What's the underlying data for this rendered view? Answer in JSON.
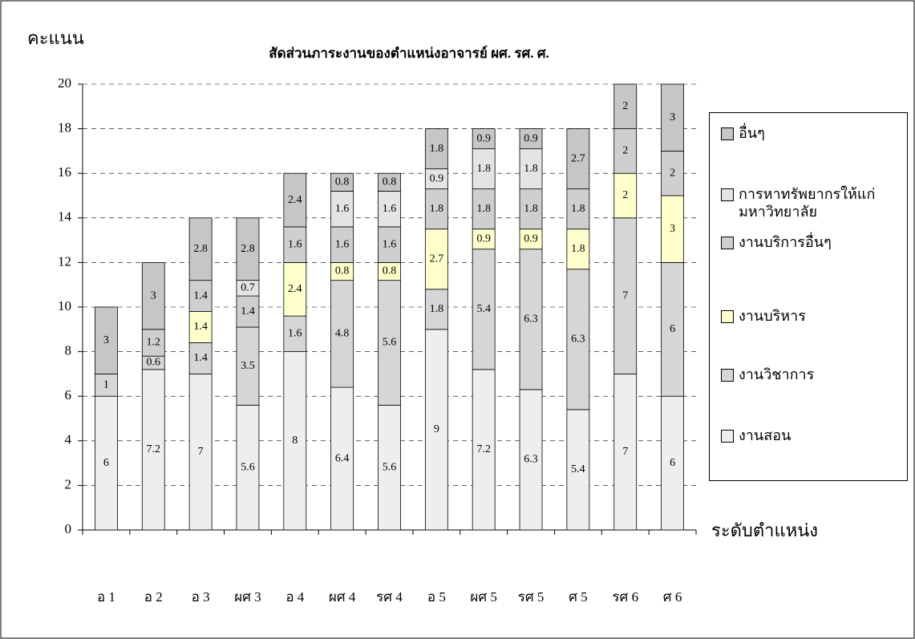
{
  "chart_data": {
    "type": "stacked_bar",
    "title": "สัดส่วนภาระงานของตำแหน่งอาจารย์ ผศ. รศ. ศ.",
    "y_label": "คะแนน",
    "x_label": "ระดับตำแหน่ง",
    "categories": [
      "อ 1",
      "อ 2",
      "อ 3",
      "ผศ 3",
      "อ 4",
      "ผศ 4",
      "รศ 4",
      "อ 5",
      "ผศ 5",
      "รศ 5",
      "ศ 5",
      "รศ 6",
      "ศ 6"
    ],
    "series": [
      {
        "name": "งานสอน",
        "color": "#eeeeee",
        "values": [
          6,
          7.2,
          7,
          5.6,
          8,
          6.4,
          5.6,
          9,
          7.2,
          6.3,
          5.4,
          7,
          6
        ]
      },
      {
        "name": "งานวิชาการ",
        "color": "#d6d6d6",
        "values": [
          1,
          0.6,
          1.4,
          3.5,
          1.6,
          4.8,
          5.6,
          1.8,
          5.4,
          6.3,
          6.3,
          7,
          6
        ]
      },
      {
        "name": "งานบริหาร",
        "color": "#ffffcc",
        "values": [
          null,
          null,
          1.4,
          null,
          2.4,
          0.8,
          0.8,
          2.7,
          0.9,
          0.9,
          1.8,
          2,
          3
        ]
      },
      {
        "name": "งานบริการอื่นๆ",
        "color": "#cfcfcf",
        "values": [
          null,
          1.2,
          1.4,
          1.4,
          1.6,
          1.6,
          1.6,
          1.8,
          1.8,
          1.8,
          1.8,
          2,
          2
        ]
      },
      {
        "name": "การหาทรัพยากรให้แก่มหาวิทยาลัย",
        "color": "#e4e4e4",
        "values": [
          null,
          null,
          null,
          0.7,
          null,
          1.6,
          1.6,
          0.9,
          1.8,
          1.8,
          null,
          null,
          null
        ]
      },
      {
        "name": "อื่นๆ",
        "color": "#c6c6c6",
        "values": [
          3,
          3,
          2.8,
          2.8,
          2.4,
          0.8,
          0.8,
          1.8,
          0.9,
          0.9,
          2.7,
          2,
          3
        ]
      }
    ],
    "ylim": [
      0,
      20
    ],
    "yticks": [
      0,
      2,
      4,
      6,
      8,
      10,
      12,
      14,
      16,
      18,
      20
    ],
    "legend": "right"
  }
}
